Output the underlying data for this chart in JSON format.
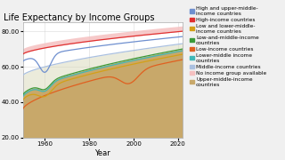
{
  "title": "Life Expectancy by Income Groups",
  "xlabel": "Year",
  "ylim": [
    20,
    85
  ],
  "xlim": [
    1950,
    2022
  ],
  "yticks": [
    20.0,
    40.0,
    60.0,
    80.0
  ],
  "xticks": [
    1960,
    1980,
    2000,
    2020
  ],
  "bg_color": "#f0f0f0",
  "plot_bg": "#ffffff",
  "grid_color": "#d0d0d0",
  "title_fontsize": 7,
  "tick_fontsize": 5,
  "legend_fontsize": 4.2,
  "series": [
    {
      "name": "High and upper-middle-\nincome countries",
      "color": "#6e8fcf"
    },
    {
      "name": "High-income countries",
      "color": "#e03030"
    },
    {
      "name": "Low and lower-middle-\nincome countries",
      "color": "#d4a017"
    },
    {
      "name": "Low-and-middle-income\ncountries",
      "color": "#3a9a3a"
    },
    {
      "name": "Low-income countries",
      "color": "#e06020"
    },
    {
      "name": "Lower-middle income\ncountries",
      "color": "#40b8b8"
    },
    {
      "name": "Middle-income countries",
      "color": "#aac0e0"
    },
    {
      "name": "No income group available",
      "color": "#f0aaaa"
    },
    {
      "name": "Upper-middle-income\ncountries",
      "color": "#d4b86a"
    }
  ],
  "pink_fill_color": "#f5c0c0",
  "tan_fill_color": "#c8a86a"
}
